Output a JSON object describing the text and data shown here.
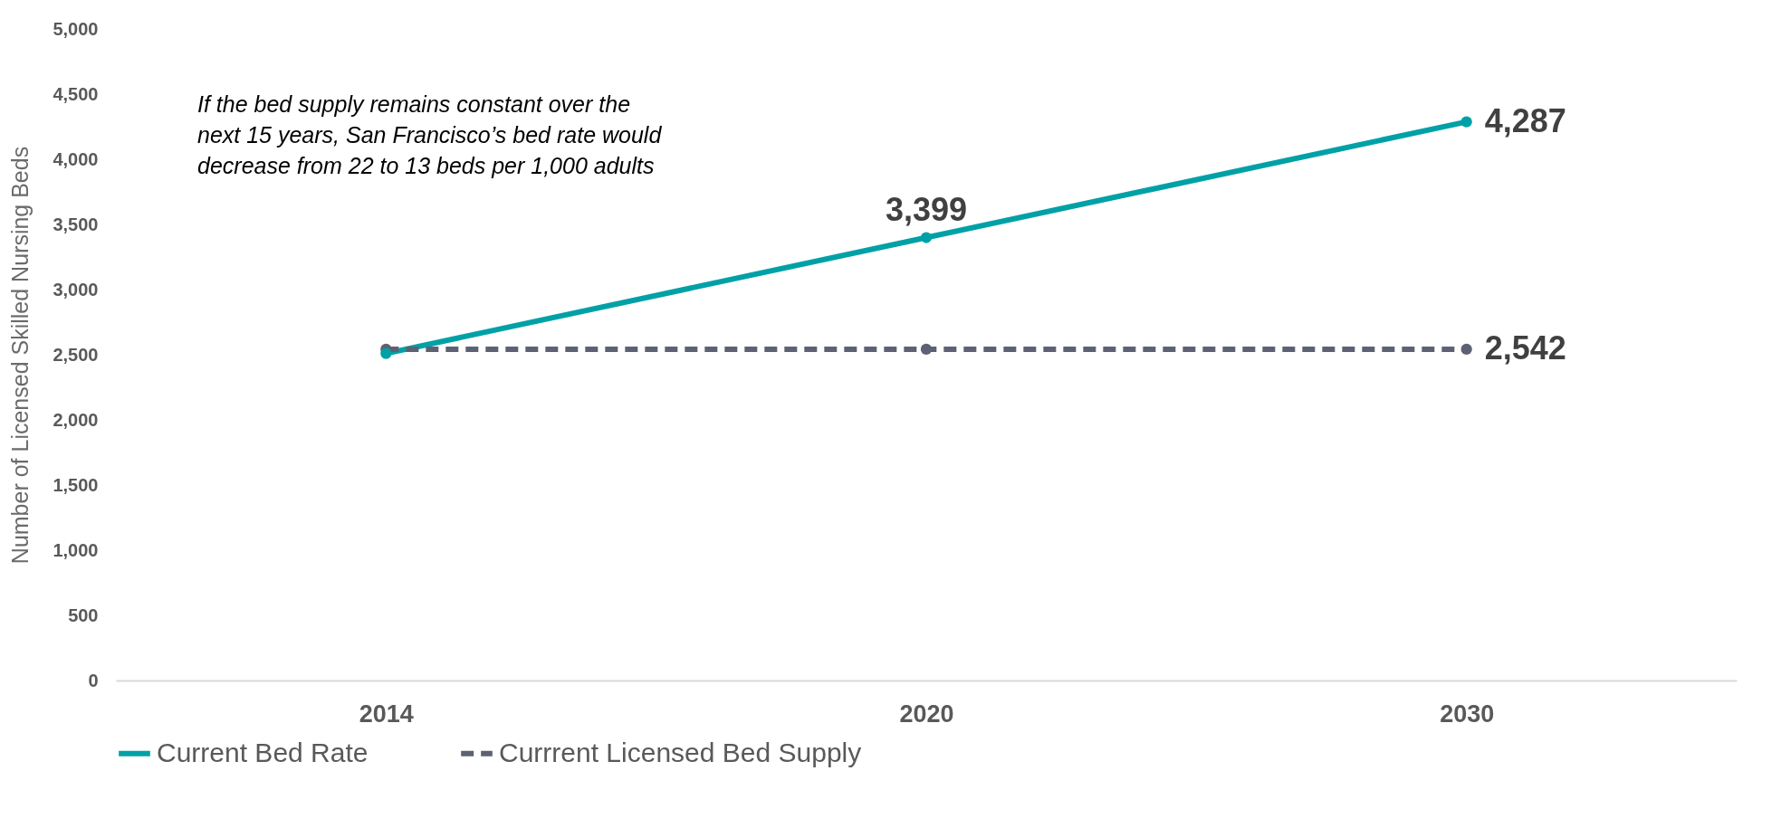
{
  "chart_data": {
    "type": "line",
    "ylabel": "Number of Licensed Skilled Nursing Beds",
    "categories": [
      "2014",
      "2020",
      "2030"
    ],
    "series": [
      {
        "name": "Current Bed Rate",
        "color": "#00a1a6",
        "line_style": "solid",
        "values": [
          2510,
          3399,
          4287
        ],
        "value_labels": [
          null,
          "3,399",
          "4,287"
        ]
      },
      {
        "name": "Currrent Licensed Bed Supply",
        "color": "#5d6174",
        "line_style": "dashed",
        "values": [
          2542,
          2542,
          2542
        ],
        "value_labels": [
          null,
          null,
          "2,542"
        ]
      }
    ],
    "ylim": [
      0,
      5000
    ],
    "yticks": [
      {
        "value": 0,
        "label": "0"
      },
      {
        "value": 500,
        "label": "500"
      },
      {
        "value": 1000,
        "label": "1,000"
      },
      {
        "value": 1500,
        "label": "1,500"
      },
      {
        "value": 2000,
        "label": "2,000"
      },
      {
        "value": 2500,
        "label": "2,500"
      },
      {
        "value": 3000,
        "label": "3,000"
      },
      {
        "value": 3500,
        "label": "3,500"
      },
      {
        "value": 4000,
        "label": "4,000"
      },
      {
        "value": 4500,
        "label": "4,500"
      },
      {
        "value": 5000,
        "label": "5,000"
      }
    ],
    "annotations": [
      "If the bed supply remains constant over the next 15 years, San Francisco’s bed rate would decrease from 22 to 13 beds per 1,000 adults"
    ],
    "marker": "circle",
    "grid": false,
    "legend": "bottom"
  }
}
